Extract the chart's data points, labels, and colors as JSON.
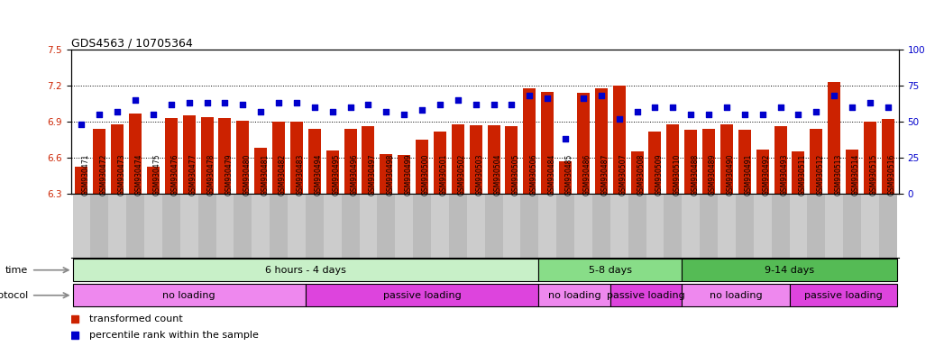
{
  "title": "GDS4563 / 10705364",
  "samples": [
    "GSM930471",
    "GSM930472",
    "GSM930473",
    "GSM930474",
    "GSM930475",
    "GSM930476",
    "GSM930477",
    "GSM930478",
    "GSM930479",
    "GSM930480",
    "GSM930481",
    "GSM930482",
    "GSM930483",
    "GSM930494",
    "GSM930495",
    "GSM930496",
    "GSM930497",
    "GSM930498",
    "GSM930499",
    "GSM930500",
    "GSM930501",
    "GSM930502",
    "GSM930503",
    "GSM930504",
    "GSM930505",
    "GSM930506",
    "GSM930484",
    "GSM930485",
    "GSM930486",
    "GSM930487",
    "GSM930507",
    "GSM930508",
    "GSM930509",
    "GSM930510",
    "GSM930488",
    "GSM930489",
    "GSM930490",
    "GSM930491",
    "GSM930492",
    "GSM930493",
    "GSM930511",
    "GSM930512",
    "GSM930513",
    "GSM930514",
    "GSM930515",
    "GSM930516"
  ],
  "bar_values": [
    6.52,
    6.84,
    6.88,
    6.97,
    6.52,
    6.93,
    6.95,
    6.94,
    6.93,
    6.91,
    6.68,
    6.9,
    6.9,
    6.84,
    6.66,
    6.84,
    6.86,
    6.63,
    6.62,
    6.75,
    6.82,
    6.88,
    6.87,
    6.87,
    6.86,
    7.18,
    7.15,
    6.57,
    7.14,
    7.18,
    7.2,
    6.65,
    6.82,
    6.88,
    6.83,
    6.84,
    6.88,
    6.83,
    6.67,
    6.86,
    6.65,
    6.84,
    7.23,
    6.67,
    6.9,
    6.92
  ],
  "percentile_values": [
    48,
    55,
    57,
    65,
    55,
    62,
    63,
    63,
    63,
    62,
    57,
    63,
    63,
    60,
    57,
    60,
    62,
    57,
    55,
    58,
    62,
    65,
    62,
    62,
    62,
    68,
    66,
    38,
    66,
    68,
    52,
    57,
    60,
    60,
    55,
    55,
    60,
    55,
    55,
    60,
    55,
    57,
    68,
    60,
    63,
    60
  ],
  "ylim_left": [
    6.3,
    7.5
  ],
  "ylim_right": [
    0,
    100
  ],
  "yticks_left": [
    6.3,
    6.6,
    6.9,
    7.2,
    7.5
  ],
  "yticks_right": [
    0,
    25,
    50,
    75,
    100
  ],
  "hlines": [
    6.6,
    6.9,
    7.2
  ],
  "bar_color": "#cc2200",
  "dot_color": "#0000cc",
  "bar_bottom": 6.3,
  "time_groups": [
    {
      "label": "6 hours - 4 days",
      "start": 0,
      "end": 26,
      "color": "#c8f0c8"
    },
    {
      "label": "5-8 days",
      "start": 26,
      "end": 34,
      "color": "#88dd88"
    },
    {
      "label": "9-14 days",
      "start": 34,
      "end": 46,
      "color": "#55bb55"
    }
  ],
  "protocol_groups": [
    {
      "label": "no loading",
      "start": 0,
      "end": 13,
      "color": "#ee88ee"
    },
    {
      "label": "passive loading",
      "start": 13,
      "end": 26,
      "color": "#dd44dd"
    },
    {
      "label": "no loading",
      "start": 26,
      "end": 30,
      "color": "#ee88ee"
    },
    {
      "label": "passive loading",
      "start": 30,
      "end": 34,
      "color": "#dd44dd"
    },
    {
      "label": "no loading",
      "start": 34,
      "end": 40,
      "color": "#ee88ee"
    },
    {
      "label": "passive loading",
      "start": 40,
      "end": 46,
      "color": "#dd44dd"
    }
  ],
  "legend_items": [
    {
      "label": "transformed count",
      "color": "#cc2200"
    },
    {
      "label": "percentile rank within the sample",
      "color": "#0000cc"
    }
  ],
  "bar_width": 0.7,
  "tick_fontsize": 6,
  "label_fontsize": 8,
  "row_fontsize": 8
}
